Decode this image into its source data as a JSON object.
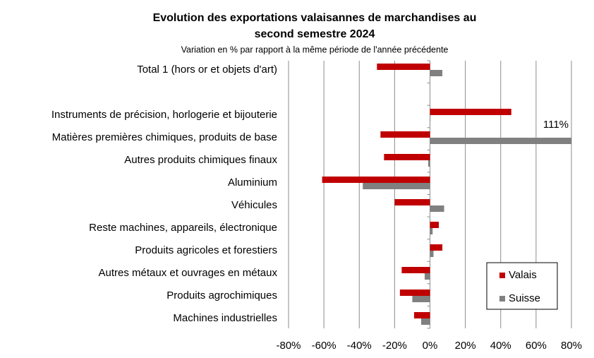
{
  "chart_data": {
    "type": "hbar",
    "title": [
      "Evolution des exportations valaisannes de marchandises au",
      "second semestre 2024"
    ],
    "subtitle": "Variation en % par rapport à la même période de l'année précédente",
    "categories": [
      "Total 1 (hors or et objets d'art)",
      null,
      "Instruments de précision, horlogerie et bijouterie",
      "Matières premières chimiques, produits de base",
      "Autres produits chimiques finaux",
      "Aluminium",
      "Véhicules",
      "Reste machines, appareils, électronique",
      "Produits agricoles et forestiers",
      "Autres métaux et ouvrages en métaux",
      "Produits agrochimiques",
      "Machines industrielles"
    ],
    "series": [
      {
        "name": "Valais",
        "color": "#c00000",
        "values": [
          -30,
          null,
          46,
          -28,
          -26,
          -61,
          -20,
          5,
          7,
          -16,
          -17,
          -9
        ]
      },
      {
        "name": "Suisse",
        "color": "#808080",
        "values": [
          7,
          null,
          0,
          111,
          -1,
          -38,
          8,
          1.5,
          2,
          -3,
          -10,
          -5
        ],
        "value_labels": [
          null,
          null,
          null,
          "111%",
          null,
          null,
          null,
          null,
          null,
          null,
          null,
          null
        ]
      }
    ],
    "xlim": [
      -80,
      80
    ],
    "xticks": [
      {
        "value": -80,
        "label": "-80%"
      },
      {
        "value": -60,
        "label": "-60%"
      },
      {
        "value": -40,
        "label": "-40%"
      },
      {
        "value": -20,
        "label": "-20%"
      },
      {
        "value": 0,
        "label": "0%"
      },
      {
        "value": 20,
        "label": "20%"
      },
      {
        "value": 40,
        "label": "40%"
      },
      {
        "value": 60,
        "label": "60%"
      },
      {
        "value": 80,
        "label": "80%"
      }
    ],
    "grid": true,
    "legend": "lower right"
  }
}
